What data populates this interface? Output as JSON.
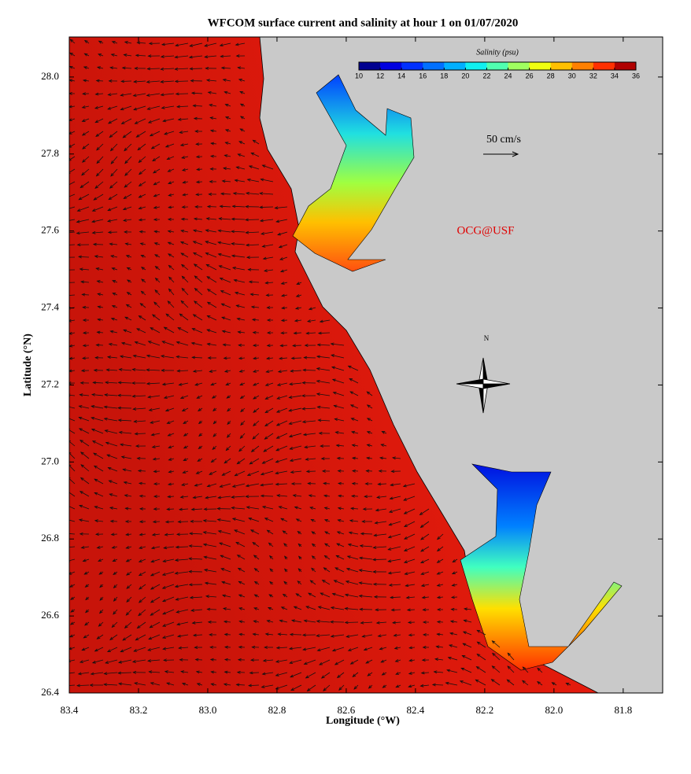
{
  "map": {
    "title": "WFCOM surface current and salinity at hour 1 on 01/07/2020",
    "x_label": "Longitude (°W)",
    "y_label": "Latitude (°N)",
    "xlim": [
      83.4,
      81.686
    ],
    "ylim": [
      26.4,
      28.104
    ],
    "xticks": [
      83.4,
      83.2,
      {
        "value": 83,
        "label": "83.0"
      },
      82.8,
      82.6,
      82.4,
      82.2,
      {
        "value": 82,
        "label": "82.0"
      },
      81.8
    ],
    "yticks": [
      26.4,
      26.6,
      26.8,
      {
        "value": 27,
        "label": "27.0"
      },
      27.2,
      27.4,
      27.6,
      27.8,
      {
        "value": 28,
        "label": "28.0"
      }
    ]
  },
  "colorbar": {
    "label": "Salinity (psu)",
    "lim": [
      10,
      36
    ],
    "ticks": [
      10,
      12,
      14,
      16,
      18,
      20,
      22,
      24,
      26,
      28,
      30,
      32,
      34,
      36
    ],
    "colors": [
      "#000090",
      "#0000e0",
      "#0030ff",
      "#0070ff",
      "#00b0ff",
      "#10f0f0",
      "#50ffb0",
      "#a0ff60",
      "#f0ff10",
      "#ffc000",
      "#ff8000",
      "#ff3000",
      "#b00000"
    ]
  },
  "scale_label": "50 cm/s",
  "credit": "OCG@USF",
  "compass_label": "N"
}
